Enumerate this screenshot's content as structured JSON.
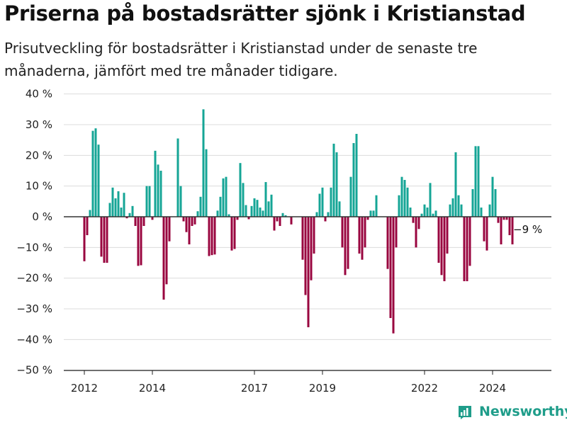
{
  "title": "Priserna på bostadsrätter sjönk i Kristianstad",
  "subtitle": "Prisutveckling för bostadsrätter i Kristianstad under de senaste tre månaderna, jämfört med tre månader tidigare.",
  "brand": {
    "name": "Newsworthy",
    "logo_icon": "newsworthy-logo-icon"
  },
  "colors": {
    "positive": "#15a596",
    "negative": "#99053f",
    "grid": "#dcdcdc",
    "zero": "#333333"
  },
  "chart_data": {
    "type": "bar",
    "grid": true,
    "ylim": [
      -50,
      40
    ],
    "y_ticks": [
      {
        "value": 40,
        "label": "40 %"
      },
      {
        "value": 30,
        "label": "30 %"
      },
      {
        "value": 20,
        "label": "20 %"
      },
      {
        "value": 10,
        "label": "10 %"
      },
      {
        "value": 0,
        "label": "0 %"
      },
      {
        "value": -10,
        "label": "−10 %"
      },
      {
        "value": -20,
        "label": "−20 %"
      },
      {
        "value": -30,
        "label": "−30 %"
      },
      {
        "value": -40,
        "label": "−40 %"
      },
      {
        "value": -50,
        "label": "−50 %"
      }
    ],
    "x_ticks": [
      {
        "year": 2012,
        "label": "2012"
      },
      {
        "year": 2014,
        "label": "2014"
      },
      {
        "year": 2017,
        "label": "2017"
      },
      {
        "year": 2019,
        "label": "2019"
      },
      {
        "year": 2022,
        "label": "2022"
      },
      {
        "year": 2024,
        "label": "2024"
      }
    ],
    "annotation": {
      "text": "−9 %"
    },
    "start": "2012-01",
    "values": [
      -14.5,
      -6,
      2.2,
      28,
      28.8,
      23.5,
      -13,
      -15,
      -15,
      4.5,
      9.5,
      6,
      8.3,
      3,
      7.8,
      -0.5,
      1.2,
      3.5,
      -3,
      -16,
      -15.8,
      -3,
      10,
      10,
      -1,
      21.5,
      17,
      15,
      -27,
      -22,
      -8,
      0,
      0,
      25.5,
      10,
      -1.5,
      -5,
      -9,
      -3,
      -2.5,
      1.8,
      6.5,
      35,
      22,
      -12.8,
      -12.5,
      -12.3,
      2,
      6.5,
      12.5,
      13,
      0.8,
      -11,
      -10.5,
      -1,
      17.5,
      11,
      3.8,
      -0.8,
      3.5,
      6,
      5.5,
      3,
      2,
      11.3,
      5,
      7.2,
      -4.5,
      -1.5,
      -3,
      1.2,
      0.5,
      0,
      -2.5,
      0,
      0,
      0,
      -14,
      -25.5,
      -36,
      -20.7,
      -12,
      1.5,
      7.5,
      9.5,
      -1.5,
      1.5,
      9.5,
      23.8,
      21,
      5,
      -10,
      -19,
      -17,
      13,
      24,
      27,
      -12,
      -14,
      -10,
      -1,
      2,
      2,
      7,
      0,
      0,
      0,
      -17,
      -33,
      -38,
      -10,
      7,
      13,
      12,
      9.5,
      3,
      -2,
      -10,
      -4,
      1,
      4,
      3,
      11,
      1,
      2,
      -15,
      -19,
      -21,
      -12,
      4,
      6,
      21,
      7,
      4,
      -21,
      -21,
      -16,
      9,
      23,
      23,
      3,
      -8,
      -11,
      4,
      13,
      9,
      -2,
      -9,
      -1,
      -1,
      -6,
      -9
    ]
  }
}
